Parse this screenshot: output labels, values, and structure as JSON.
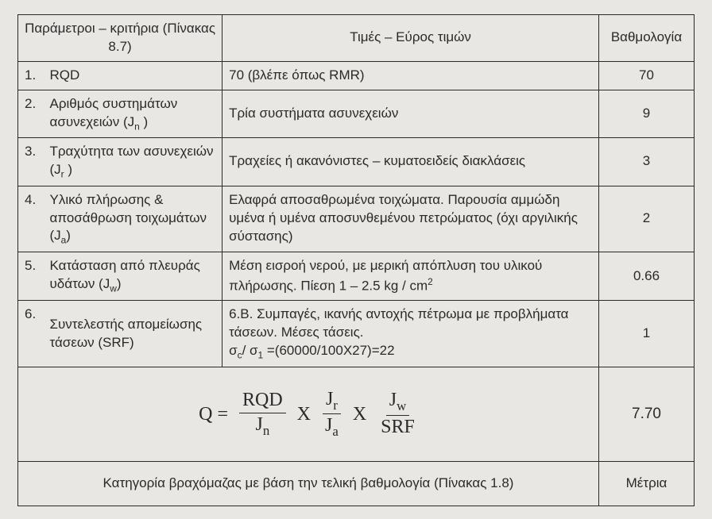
{
  "headers": {
    "parameters": "Παράμετροι – κριτήρια (Πίνακας 8.7)",
    "values": "Τιμές – Εύρος τιμών",
    "score": "Βαθμολογία"
  },
  "rows": [
    {
      "num": "1.",
      "param": "RQD",
      "value": "70 (βλέπε όπως RMR)",
      "score": "70"
    },
    {
      "num": "2.",
      "param_html": "Αριθμός συστημάτων ασυνεχειών (J<sub>n</sub> )",
      "value": "Τρία συστήματα ασυνεχειών",
      "score": "9"
    },
    {
      "num": "3.",
      "param_html": "Τραχύτητα των ασυνεχειών (J<sub>r</sub> )",
      "value": "Τραχείες ή ακανόνιστες – κυματοειδείς διακλάσεις",
      "score": "3"
    },
    {
      "num": "4.",
      "param_html": "Υλικό πλήρωσης &amp; αποσάθρωση τοιχωμάτων (J<sub>a</sub>)",
      "value": "Ελαφρά αποσαθρωμένα τοιχώματα. Παρουσία αμμώδη υμένα ή υμένα αποσυνθεμένου πετρώματος (όχι αργιλικής σύστασης)",
      "score": "2"
    },
    {
      "num": "5.",
      "param_html": "Κατάσταση από πλευράς υδάτων (J<sub>w</sub>)",
      "value_html": "Μέση εισροή νερού, με μερική απόπλυση του υλικού πλήρωσης. Πίεση 1 – 2.5  kg / cm<sup>2</sup>",
      "score": "0.66"
    },
    {
      "num": "6.",
      "param": "Συντελεστής απομείωσης τάσεων (SRF)",
      "value_html": " 6.Β. Συμπαγές, ικανής αντοχής πέτρωμα με προβλήματα τάσεων.  Μέσες τάσεις.<br>σ<sub>c</sub>/ σ<sub>1</sub> =(60000/100X27)=22",
      "score": "1"
    }
  ],
  "formula": {
    "prefix": "Q =",
    "f1_top": "RQD",
    "f1_bot_html": "J<sub>n</sub>",
    "x": "X",
    "f2_top_html": "J<sub>r</sub>",
    "f2_bot_html": "J<sub>a</sub>",
    "f3_top_html": "J<sub>w</sub>",
    "f3_bot": "SRF",
    "result": "7.70"
  },
  "category": {
    "label": "Κατηγορία βραχόμαζας με βάση την τελική βαθμολογία (Πίνακας 1.8)",
    "value": "Μέτρια"
  },
  "style": {
    "background": "#e8e7e3",
    "text_color": "#2a2a2a",
    "border_color": "#2a2a2a",
    "header_fontsize": 17,
    "formula_fontsize": 24,
    "col_widths": {
      "param": 310,
      "score": 120
    }
  }
}
